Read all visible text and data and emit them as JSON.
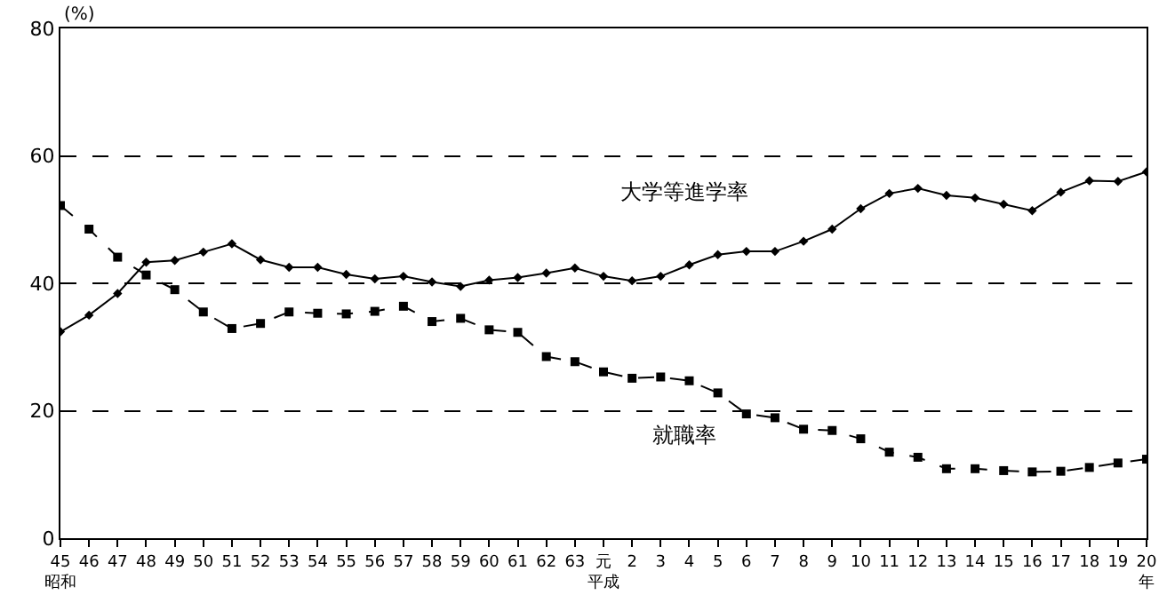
{
  "chart_data": {
    "type": "line",
    "ylabel": "(%)",
    "categories": [
      "45昭和",
      "46",
      "47",
      "48",
      "49",
      "50",
      "51",
      "52",
      "53",
      "54",
      "55",
      "56",
      "57",
      "58",
      "59",
      "60",
      "61",
      "62",
      "63",
      "元平成",
      "2",
      "3",
      "4",
      "5",
      "6",
      "7",
      "8",
      "9",
      "10",
      "11",
      "12",
      "13",
      "14",
      "15",
      "16",
      "17",
      "18",
      "19",
      "20年"
    ],
    "series": [
      {
        "name": "大学等進学率",
        "color": "#000000",
        "marker": "diamond",
        "line_style": "solid",
        "values": [
          32.4,
          35.0,
          38.4,
          43.3,
          43.6,
          44.9,
          46.2,
          43.7,
          42.5,
          42.5,
          41.4,
          40.7,
          41.1,
          40.2,
          39.5,
          40.5,
          40.9,
          41.6,
          42.4,
          41.1,
          40.4,
          41.1,
          42.9,
          44.5,
          45.0,
          45.0,
          46.6,
          48.5,
          51.7,
          54.1,
          54.9,
          53.8,
          53.4,
          52.4,
          51.4,
          54.3,
          56.1,
          56.0,
          57.5
        ]
      },
      {
        "name": "就職率",
        "color": "#000000",
        "marker": "square",
        "line_style": "dashed",
        "values": [
          52.2,
          48.5,
          44.1,
          41.3,
          39.0,
          35.5,
          32.9,
          33.7,
          35.5,
          35.3,
          35.2,
          35.6,
          36.4,
          34.0,
          34.5,
          32.7,
          32.3,
          28.5,
          27.7,
          26.1,
          25.1,
          25.3,
          24.7,
          22.8,
          19.5,
          18.9,
          17.1,
          16.9,
          15.6,
          13.5,
          12.7,
          10.9,
          10.9,
          10.6,
          10.4,
          10.5,
          11.1,
          11.8,
          12.4
        ]
      }
    ],
    "ylim": [
      0,
      80
    ],
    "yticks": [
      0,
      20,
      40,
      60,
      80
    ],
    "grid": "y",
    "legend": false
  }
}
